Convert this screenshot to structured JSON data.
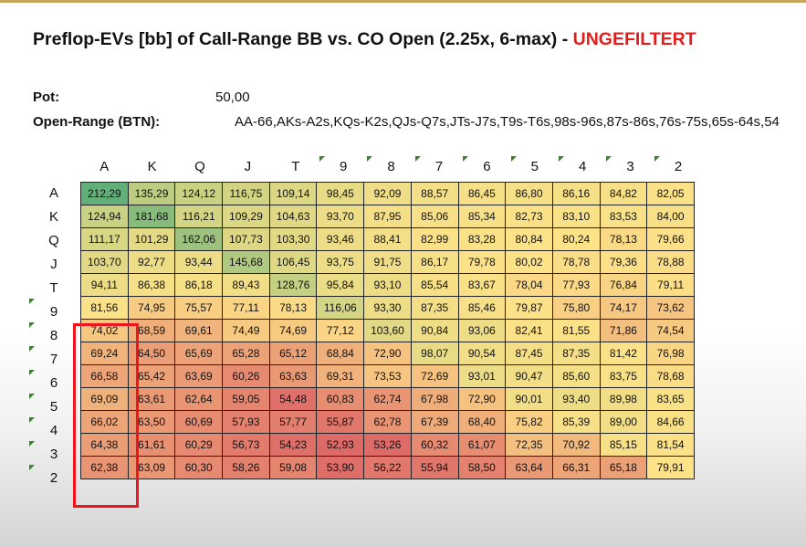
{
  "title": {
    "main": "Preflop-EVs [bb] of Call-Range BB vs. CO Open (2.25x, 6-max) -",
    "highlight": "UNGEFILTERT",
    "highlight_color": "#e0201c"
  },
  "info": {
    "pot_label": "Pot:",
    "pot_value": "50,00",
    "range_label": "Open-Range (BTN):",
    "range_value": "AA-66,AKs-A2s,KQs-K2s,QJs-Q7s,JTs-J7s,T9s-T6s,98s-96s,87s-86s,76s-75s,65s-64s,54"
  },
  "grid": {
    "cols": [
      "A",
      "K",
      "Q",
      "J",
      "T",
      "9",
      "8",
      "7",
      "6",
      "5",
      "4",
      "3",
      "2"
    ],
    "rows": [
      "A",
      "K",
      "Q",
      "J",
      "T",
      "9",
      "8",
      "7",
      "6",
      "5",
      "4",
      "3",
      "2"
    ],
    "values": [
      [
        "212,29",
        "135,29",
        "124,12",
        "116,75",
        "109,14",
        "98,45",
        "92,09",
        "88,57",
        "86,45",
        "86,80",
        "86,16",
        "84,82",
        "82,05"
      ],
      [
        "124,94",
        "181,68",
        "116,21",
        "109,29",
        "104,63",
        "93,70",
        "87,95",
        "85,06",
        "85,34",
        "82,73",
        "83,10",
        "83,53",
        "84,00"
      ],
      [
        "111,17",
        "101,29",
        "162,06",
        "107,73",
        "103,30",
        "93,46",
        "88,41",
        "82,99",
        "83,28",
        "80,84",
        "80,24",
        "78,13",
        "79,66"
      ],
      [
        "103,70",
        "92,77",
        "93,44",
        "145,68",
        "106,45",
        "93,75",
        "91,75",
        "86,17",
        "79,78",
        "80,02",
        "78,78",
        "79,36",
        "78,88"
      ],
      [
        "94,11",
        "86,38",
        "86,18",
        "89,43",
        "128,76",
        "95,84",
        "93,10",
        "85,54",
        "83,67",
        "78,04",
        "77,93",
        "76,84",
        "79,11"
      ],
      [
        "81,56",
        "74,95",
        "75,57",
        "77,11",
        "78,13",
        "116,06",
        "93,30",
        "87,35",
        "85,46",
        "79,87",
        "75,80",
        "74,17",
        "73,62"
      ],
      [
        "74,02",
        "68,59",
        "69,61",
        "74,49",
        "74,69",
        "77,12",
        "103,60",
        "90,84",
        "93,06",
        "82,41",
        "81,55",
        "71,86",
        "74,54"
      ],
      [
        "69,24",
        "64,50",
        "65,69",
        "65,28",
        "65,12",
        "68,84",
        "72,90",
        "98,07",
        "90,54",
        "87,45",
        "87,35",
        "81,42",
        "76,98"
      ],
      [
        "66,58",
        "65,42",
        "63,69",
        "60,26",
        "63,63",
        "69,31",
        "73,53",
        "72,69",
        "93,01",
        "90,47",
        "85,60",
        "83,75",
        "78,68"
      ],
      [
        "69,09",
        "63,61",
        "62,64",
        "59,05",
        "54,48",
        "60,83",
        "62,74",
        "67,98",
        "72,90",
        "90,01",
        "93,40",
        "89,98",
        "83,65"
      ],
      [
        "66,02",
        "63,50",
        "60,69",
        "57,93",
        "57,77",
        "55,87",
        "62,78",
        "67,39",
        "68,40",
        "75,82",
        "85,39",
        "89,00",
        "84,66"
      ],
      [
        "64,38",
        "61,61",
        "60,29",
        "56,73",
        "54,23",
        "52,93",
        "53,26",
        "60,32",
        "61,07",
        "72,35",
        "70,92",
        "85,15",
        "81,54"
      ],
      [
        "62,38",
        "63,09",
        "60,30",
        "58,26",
        "59,08",
        "53,90",
        "56,22",
        "55,94",
        "58,50",
        "63,64",
        "66,31",
        "65,18",
        "79,91"
      ]
    ],
    "selection_color": "#f0141c",
    "marker_color": "#3f7f33"
  }
}
